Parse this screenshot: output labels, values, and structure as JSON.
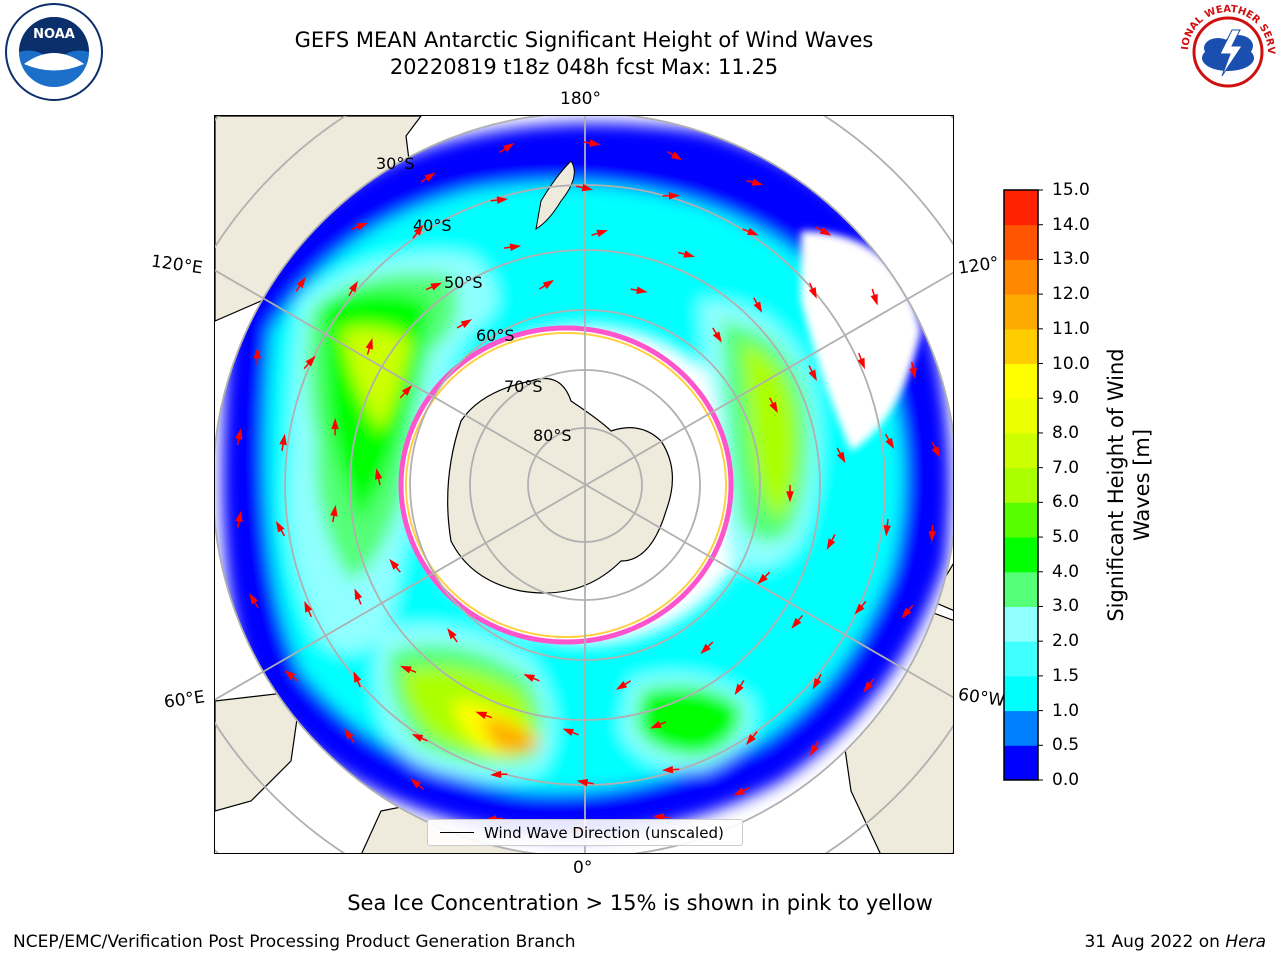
{
  "title": {
    "line1": "GEFS MEAN Antarctic Significant Height of Wind Waves",
    "line2": "20220819 t18z 048h fcst   Max: 11.25"
  },
  "logos": {
    "noaa_text": "NOAA",
    "nws_text": "NATIONAL WEATHER SERVICE"
  },
  "map": {
    "projection": "south-polar-stereographic",
    "longitude_labels": {
      "top": "180°",
      "left_upper": "120°E",
      "right_upper": "120°",
      "left_lower": "60°E",
      "right_lower": "60°W",
      "bottom": "0°"
    },
    "latitude_labels": [
      "30°S",
      "40°S",
      "50°S",
      "60°S",
      "70°S",
      "80°S"
    ],
    "legend_label": "Wind Wave Direction (unscaled)",
    "colors": {
      "land": "#efebdc",
      "sea_ice_edge": "#ff55cc",
      "arrows": "#ff0000",
      "graticule": "#b0b0b0"
    }
  },
  "colorbar": {
    "label_line1": "Significant Height of Wind",
    "label_line2": "Waves [m]",
    "ticks": [
      "0.0",
      "0.5",
      "1.0",
      "1.5",
      "2.0",
      "3.0",
      "4.0",
      "5.0",
      "6.0",
      "7.0",
      "8.0",
      "9.0",
      "10.0",
      "11.0",
      "12.0",
      "13.0",
      "14.0",
      "15.0"
    ],
    "colors": [
      "#0000ff",
      "#0080ff",
      "#00ffff",
      "#40ffff",
      "#90ffff",
      "#55ff77",
      "#00ff00",
      "#55ff00",
      "#aaff00",
      "#ccff00",
      "#eeff00",
      "#ffff00",
      "#ffcc00",
      "#ffaa00",
      "#ff8800",
      "#ff5500",
      "#ff2200"
    ]
  },
  "footer": {
    "sea_ice_note": "Sea Ice Concentration > 15% is shown in pink to yellow",
    "credit": "NCEP/EMC/Verification Post Processing Product Generation Branch",
    "date_prefix": "31 Aug 2022 on",
    "date_host": "Hera"
  }
}
